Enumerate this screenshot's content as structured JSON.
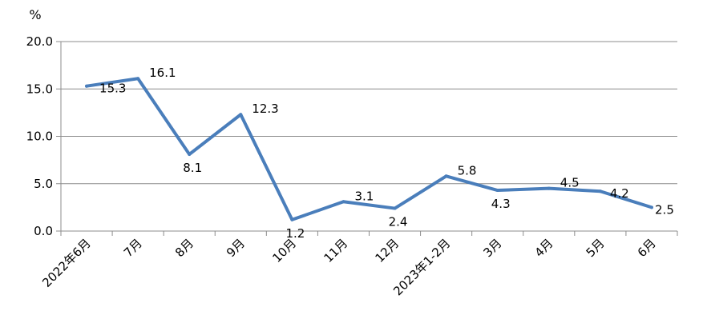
{
  "chart_data": {
    "type": "line",
    "unit_label": "%",
    "categories": [
      "2022年6月",
      "7月",
      "8月",
      "9月",
      "10月",
      "11月",
      "12月",
      "2023年1-2月",
      "3月",
      "4月",
      "5月",
      "6月"
    ],
    "series": [
      {
        "values": [
          15.3,
          16.1,
          8.1,
          12.3,
          1.2,
          3.1,
          2.4,
          5.8,
          4.3,
          4.5,
          4.2,
          2.5
        ],
        "labels": [
          "15.3",
          "16.1",
          "8.1",
          "12.3",
          "1.2",
          "3.1",
          "2.4",
          "5.8",
          "4.3",
          "4.5",
          "4.2",
          "2.5"
        ]
      }
    ],
    "ylim": [
      0,
      20
    ],
    "yticks": [
      "0.0",
      "5.0",
      "10.0",
      "15.0",
      "20.0"
    ],
    "grid": true,
    "colors": {
      "line": "#4a7ebb",
      "grid": "#8c8c8c",
      "axis": "#8c8c8c"
    }
  }
}
